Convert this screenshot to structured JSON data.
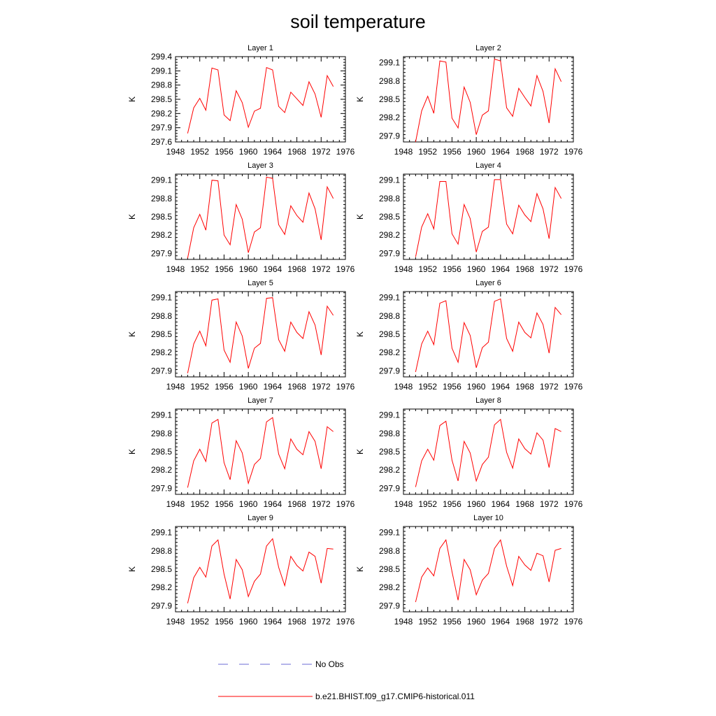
{
  "title": "soil temperature",
  "legend": [
    {
      "label": "No Obs",
      "color": "#6b6bd6",
      "dash": "dashed"
    },
    {
      "label": "b.e21.BHIST.f09_g17.CMIP6-historical.011",
      "color": "#ff0000",
      "dash": "solid"
    }
  ],
  "chart_data": [
    {
      "type": "line",
      "title": "Layer 1",
      "xlabel": "",
      "ylabel": "K",
      "xlim": [
        1948,
        1976
      ],
      "xticks": [
        1948,
        1952,
        1956,
        1960,
        1964,
        1968,
        1972,
        1976
      ],
      "ylim": [
        297.6,
        299.4
      ],
      "yticks": [
        "297.6",
        "297.9",
        "298.2",
        "298.5",
        "298.8",
        "299.1",
        "299.4"
      ],
      "series": [
        {
          "color": "#ff0000",
          "x": [
            1950,
            1951,
            1952,
            1953,
            1954,
            1955,
            1956,
            1957,
            1958,
            1959,
            1960,
            1961,
            1962,
            1963,
            1964,
            1965,
            1966,
            1967,
            1968,
            1969,
            1970,
            1971,
            1972,
            1973,
            1974
          ],
          "values": [
            297.78,
            298.32,
            298.52,
            298.27,
            299.16,
            299.12,
            298.17,
            298.05,
            298.68,
            298.43,
            297.91,
            298.25,
            298.31,
            299.17,
            299.12,
            298.35,
            298.22,
            298.65,
            298.51,
            298.37,
            298.87,
            298.61,
            298.12,
            299.0,
            298.77
          ]
        }
      ]
    },
    {
      "type": "line",
      "title": "Layer 2",
      "xlabel": "",
      "ylabel": "K",
      "xlim": [
        1948,
        1976
      ],
      "xticks": [
        1948,
        1952,
        1956,
        1960,
        1964,
        1968,
        1972,
        1976
      ],
      "ylim": [
        297.8,
        299.2
      ],
      "yticks": [
        "297.9",
        "298.2",
        "298.5",
        "298.8",
        "299.1"
      ],
      "series": [
        {
          "color": "#ff0000",
          "x": [
            1950,
            1951,
            1952,
            1953,
            1954,
            1955,
            1956,
            1957,
            1958,
            1959,
            1960,
            1961,
            1962,
            1963,
            1964,
            1965,
            1966,
            1967,
            1968,
            1969,
            1970,
            1971,
            1972,
            1973,
            1974
          ],
          "values": [
            297.8,
            298.31,
            298.55,
            298.27,
            299.13,
            299.11,
            298.19,
            298.03,
            298.7,
            298.45,
            297.92,
            298.24,
            298.31,
            299.16,
            299.13,
            298.36,
            298.22,
            298.68,
            298.53,
            298.39,
            298.89,
            298.63,
            298.11,
            299.0,
            298.79
          ]
        }
      ]
    },
    {
      "type": "line",
      "title": "Layer 3",
      "xlabel": "",
      "ylabel": "K",
      "xlim": [
        1948,
        1976
      ],
      "xticks": [
        1948,
        1952,
        1956,
        1960,
        1964,
        1968,
        1972,
        1976
      ],
      "ylim": [
        297.8,
        299.2
      ],
      "yticks": [
        "297.9",
        "298.2",
        "298.5",
        "298.8",
        "299.1"
      ],
      "series": [
        {
          "color": "#ff0000",
          "x": [
            1950,
            1951,
            1952,
            1953,
            1954,
            1955,
            1956,
            1957,
            1958,
            1959,
            1960,
            1961,
            1962,
            1963,
            1964,
            1965,
            1966,
            1967,
            1968,
            1969,
            1970,
            1971,
            1972,
            1973,
            1974
          ],
          "values": [
            297.82,
            298.32,
            298.54,
            298.28,
            299.1,
            299.09,
            298.2,
            298.04,
            298.7,
            298.46,
            297.91,
            298.25,
            298.32,
            299.15,
            299.13,
            298.37,
            298.21,
            298.68,
            298.52,
            298.41,
            298.89,
            298.63,
            298.12,
            298.99,
            298.8
          ]
        }
      ]
    },
    {
      "type": "line",
      "title": "Layer 4",
      "xlabel": "",
      "ylabel": "K",
      "xlim": [
        1948,
        1976
      ],
      "xticks": [
        1948,
        1952,
        1956,
        1960,
        1964,
        1968,
        1972,
        1976
      ],
      "ylim": [
        297.8,
        299.2
      ],
      "yticks": [
        "297.9",
        "298.2",
        "298.5",
        "298.8",
        "299.1"
      ],
      "series": [
        {
          "color": "#ff0000",
          "x": [
            1950,
            1951,
            1952,
            1953,
            1954,
            1955,
            1956,
            1957,
            1958,
            1959,
            1960,
            1961,
            1962,
            1963,
            1964,
            1965,
            1966,
            1967,
            1968,
            1969,
            1970,
            1971,
            1972,
            1973,
            1974
          ],
          "values": [
            297.84,
            298.33,
            298.55,
            298.3,
            299.08,
            299.08,
            298.22,
            298.05,
            298.7,
            298.47,
            297.92,
            298.26,
            298.33,
            299.11,
            299.11,
            298.38,
            298.22,
            298.69,
            298.53,
            298.42,
            298.88,
            298.63,
            298.14,
            298.98,
            298.8
          ]
        }
      ]
    },
    {
      "type": "line",
      "title": "Layer 5",
      "xlabel": "",
      "ylabel": "K",
      "xlim": [
        1948,
        1976
      ],
      "xticks": [
        1948,
        1952,
        1956,
        1960,
        1964,
        1968,
        1972,
        1976
      ],
      "ylim": [
        297.8,
        299.2
      ],
      "yticks": [
        "297.9",
        "298.2",
        "298.5",
        "298.8",
        "299.1"
      ],
      "series": [
        {
          "color": "#ff0000",
          "x": [
            1950,
            1951,
            1952,
            1953,
            1954,
            1955,
            1956,
            1957,
            1958,
            1959,
            1960,
            1961,
            1962,
            1963,
            1964,
            1965,
            1966,
            1967,
            1968,
            1969,
            1970,
            1971,
            1972,
            1973,
            1974
          ],
          "values": [
            297.86,
            298.34,
            298.55,
            298.31,
            299.06,
            299.08,
            298.24,
            298.04,
            298.7,
            298.47,
            297.94,
            298.27,
            298.35,
            299.09,
            299.1,
            298.41,
            298.22,
            298.7,
            298.53,
            298.43,
            298.87,
            298.65,
            298.16,
            298.96,
            298.81
          ]
        }
      ]
    },
    {
      "type": "line",
      "title": "Layer 6",
      "xlabel": "",
      "ylabel": "K",
      "xlim": [
        1948,
        1976
      ],
      "xticks": [
        1948,
        1952,
        1956,
        1960,
        1964,
        1968,
        1972,
        1976
      ],
      "ylim": [
        297.8,
        299.2
      ],
      "yticks": [
        "297.9",
        "298.2",
        "298.5",
        "298.8",
        "299.1"
      ],
      "series": [
        {
          "color": "#ff0000",
          "x": [
            1950,
            1951,
            1952,
            1953,
            1954,
            1955,
            1956,
            1957,
            1958,
            1959,
            1960,
            1961,
            1962,
            1963,
            1964,
            1965,
            1966,
            1967,
            1968,
            1969,
            1970,
            1971,
            1972,
            1973,
            1974
          ],
          "values": [
            297.88,
            298.34,
            298.55,
            298.33,
            299.01,
            299.05,
            298.27,
            298.04,
            298.69,
            298.48,
            297.95,
            298.28,
            298.37,
            299.04,
            299.08,
            298.43,
            298.22,
            298.7,
            298.53,
            298.44,
            298.85,
            298.66,
            298.19,
            298.94,
            298.82
          ]
        }
      ]
    },
    {
      "type": "line",
      "title": "Layer 7",
      "xlabel": "",
      "ylabel": "K",
      "xlim": [
        1948,
        1976
      ],
      "xticks": [
        1948,
        1952,
        1956,
        1960,
        1964,
        1968,
        1972,
        1976
      ],
      "ylim": [
        297.8,
        299.2
      ],
      "yticks": [
        "297.9",
        "298.2",
        "298.5",
        "298.8",
        "299.1"
      ],
      "series": [
        {
          "color": "#ff0000",
          "x": [
            1950,
            1951,
            1952,
            1953,
            1954,
            1955,
            1956,
            1957,
            1958,
            1959,
            1960,
            1961,
            1962,
            1963,
            1964,
            1965,
            1966,
            1967,
            1968,
            1969,
            1970,
            1971,
            1972,
            1973,
            1974
          ],
          "values": [
            297.91,
            298.35,
            298.54,
            298.34,
            298.97,
            299.03,
            298.32,
            298.04,
            298.68,
            298.48,
            297.98,
            298.29,
            298.39,
            298.99,
            299.06,
            298.46,
            298.22,
            298.71,
            298.54,
            298.45,
            298.83,
            298.67,
            298.22,
            298.91,
            298.83
          ]
        }
      ]
    },
    {
      "type": "line",
      "title": "Layer 8",
      "xlabel": "",
      "ylabel": "K",
      "xlim": [
        1948,
        1976
      ],
      "xticks": [
        1948,
        1952,
        1956,
        1960,
        1964,
        1968,
        1972,
        1976
      ],
      "ylim": [
        297.8,
        299.2
      ],
      "yticks": [
        "297.9",
        "298.2",
        "298.5",
        "298.8",
        "299.1"
      ],
      "series": [
        {
          "color": "#ff0000",
          "x": [
            1950,
            1951,
            1952,
            1953,
            1954,
            1955,
            1956,
            1957,
            1958,
            1959,
            1960,
            1961,
            1962,
            1963,
            1964,
            1965,
            1966,
            1967,
            1968,
            1969,
            1970,
            1971,
            1972,
            1973,
            1974
          ],
          "values": [
            297.92,
            298.35,
            298.54,
            298.36,
            298.93,
            299.0,
            298.36,
            298.02,
            298.67,
            298.48,
            298.02,
            298.29,
            298.41,
            298.94,
            299.03,
            298.49,
            298.23,
            298.71,
            298.55,
            298.46,
            298.81,
            298.69,
            298.24,
            298.88,
            298.83
          ]
        }
      ]
    },
    {
      "type": "line",
      "title": "Layer 9",
      "xlabel": "",
      "ylabel": "K",
      "xlim": [
        1948,
        1976
      ],
      "xticks": [
        1948,
        1952,
        1956,
        1960,
        1964,
        1968,
        1972,
        1976
      ],
      "ylim": [
        297.8,
        299.2
      ],
      "yticks": [
        "297.9",
        "298.2",
        "298.5",
        "298.8",
        "299.1"
      ],
      "series": [
        {
          "color": "#ff0000",
          "x": [
            1950,
            1951,
            1952,
            1953,
            1954,
            1955,
            1956,
            1957,
            1958,
            1959,
            1960,
            1961,
            1962,
            1963,
            1964,
            1965,
            1966,
            1967,
            1968,
            1969,
            1970,
            1971,
            1972,
            1973,
            1974
          ],
          "values": [
            297.94,
            298.36,
            298.53,
            298.37,
            298.88,
            298.98,
            298.42,
            298.01,
            298.66,
            298.49,
            298.05,
            298.3,
            298.42,
            298.88,
            299.0,
            298.53,
            298.23,
            298.71,
            298.56,
            298.47,
            298.78,
            298.71,
            298.27,
            298.84,
            298.83
          ]
        }
      ]
    },
    {
      "type": "line",
      "title": "Layer 10",
      "xlabel": "",
      "ylabel": "K",
      "xlim": [
        1948,
        1976
      ],
      "xticks": [
        1948,
        1952,
        1956,
        1960,
        1964,
        1968,
        1972,
        1976
      ],
      "ylim": [
        297.8,
        299.2
      ],
      "yticks": [
        "297.9",
        "298.2",
        "298.5",
        "298.8",
        "299.1"
      ],
      "series": [
        {
          "color": "#ff0000",
          "x": [
            1950,
            1951,
            1952,
            1953,
            1954,
            1955,
            1956,
            1957,
            1958,
            1959,
            1960,
            1961,
            1962,
            1963,
            1964,
            1965,
            1966,
            1967,
            1968,
            1969,
            1970,
            1971,
            1972,
            1973,
            1974
          ],
          "values": [
            297.96,
            298.37,
            298.52,
            298.39,
            298.84,
            298.98,
            298.46,
            297.99,
            298.66,
            298.49,
            298.08,
            298.32,
            298.43,
            298.84,
            298.98,
            298.55,
            298.23,
            298.71,
            298.57,
            298.48,
            298.76,
            298.72,
            298.29,
            298.81,
            298.84
          ]
        }
      ]
    }
  ]
}
